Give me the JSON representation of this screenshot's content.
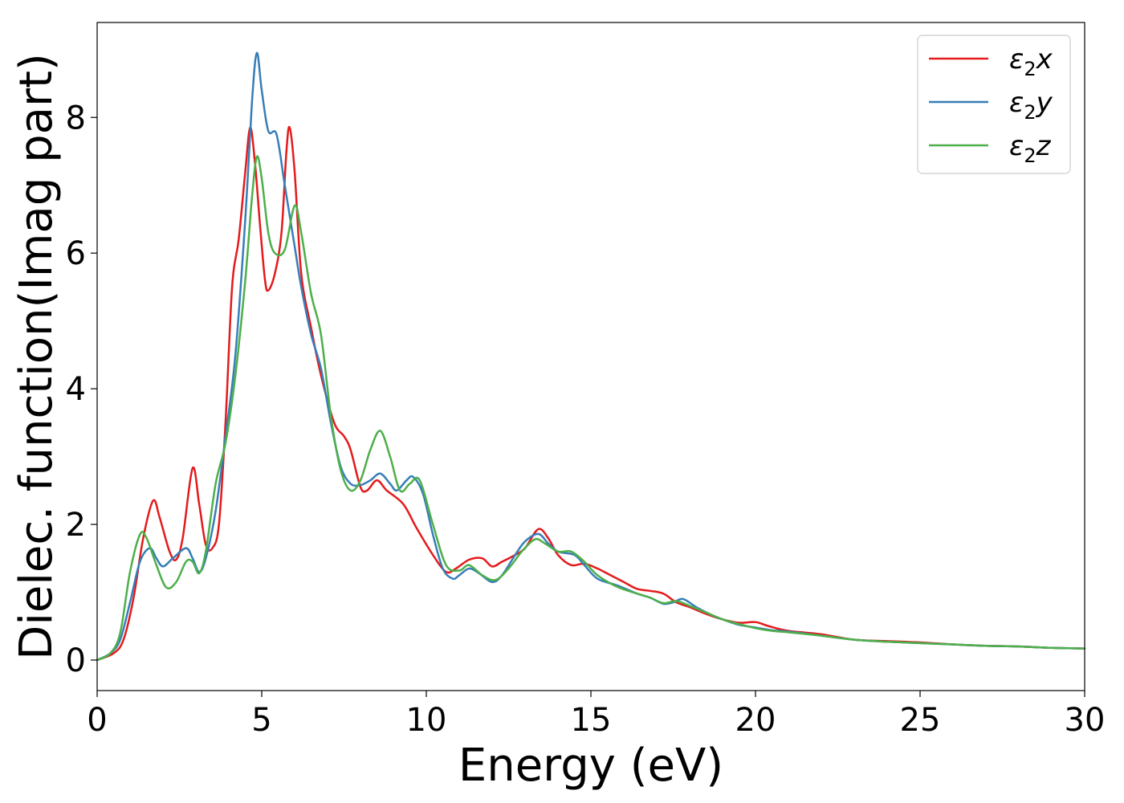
{
  "chart_data": {
    "type": "line",
    "xlabel": "Energy (eV)",
    "ylabel": "Dielec. function(Imag part)",
    "xlim": [
      0,
      30
    ],
    "ylim": [
      -0.45,
      9.4
    ],
    "xticks": [
      0,
      5,
      10,
      15,
      20,
      25,
      30
    ],
    "yticks": [
      0,
      2,
      4,
      6,
      8
    ],
    "grid": false,
    "legend_position": "top-right",
    "series": [
      {
        "name": "ε₂x",
        "legend_base": "ε",
        "legend_sub": "2",
        "legend_var": "x",
        "color": "#e41a1c",
        "points": [
          [
            0,
            0
          ],
          [
            0.5,
            0.1
          ],
          [
            0.8,
            0.3
          ],
          [
            1.1,
            0.9
          ],
          [
            1.4,
            1.8
          ],
          [
            1.7,
            2.35
          ],
          [
            1.9,
            2.1
          ],
          [
            2.2,
            1.6
          ],
          [
            2.4,
            1.48
          ],
          [
            2.6,
            1.8
          ],
          [
            2.9,
            2.83
          ],
          [
            3.1,
            2.3
          ],
          [
            3.3,
            1.7
          ],
          [
            3.5,
            1.65
          ],
          [
            3.7,
            2.0
          ],
          [
            3.9,
            3.5
          ],
          [
            4.1,
            5.5
          ],
          [
            4.3,
            6.2
          ],
          [
            4.5,
            7.2
          ],
          [
            4.65,
            7.85
          ],
          [
            4.8,
            7.3
          ],
          [
            4.95,
            6.4
          ],
          [
            5.1,
            5.6
          ],
          [
            5.2,
            5.45
          ],
          [
            5.4,
            5.7
          ],
          [
            5.6,
            6.3
          ],
          [
            5.75,
            7.5
          ],
          [
            5.85,
            7.85
          ],
          [
            6.0,
            7.2
          ],
          [
            6.2,
            5.7
          ],
          [
            6.5,
            4.9
          ],
          [
            6.8,
            4.2
          ],
          [
            7.2,
            3.5
          ],
          [
            7.5,
            3.3
          ],
          [
            7.7,
            3.1
          ],
          [
            8.0,
            2.55
          ],
          [
            8.2,
            2.5
          ],
          [
            8.5,
            2.65
          ],
          [
            8.8,
            2.5
          ],
          [
            9.3,
            2.3
          ],
          [
            9.7,
            1.95
          ],
          [
            10.2,
            1.55
          ],
          [
            10.6,
            1.3
          ],
          [
            10.9,
            1.35
          ],
          [
            11.3,
            1.48
          ],
          [
            11.7,
            1.5
          ],
          [
            12.0,
            1.38
          ],
          [
            12.3,
            1.45
          ],
          [
            12.7,
            1.55
          ],
          [
            13.0,
            1.65
          ],
          [
            13.4,
            1.93
          ],
          [
            13.7,
            1.8
          ],
          [
            14.0,
            1.55
          ],
          [
            14.4,
            1.4
          ],
          [
            14.8,
            1.42
          ],
          [
            15.2,
            1.35
          ],
          [
            15.6,
            1.25
          ],
          [
            16.0,
            1.15
          ],
          [
            16.4,
            1.05
          ],
          [
            16.8,
            1.02
          ],
          [
            17.2,
            0.98
          ],
          [
            17.6,
            0.85
          ],
          [
            18.0,
            0.78
          ],
          [
            18.5,
            0.68
          ],
          [
            19.0,
            0.6
          ],
          [
            19.5,
            0.55
          ],
          [
            20.0,
            0.56
          ],
          [
            20.4,
            0.5
          ],
          [
            21.0,
            0.43
          ],
          [
            22.0,
            0.38
          ],
          [
            23.0,
            0.3
          ],
          [
            24.0,
            0.28
          ],
          [
            25.0,
            0.26
          ],
          [
            26.0,
            0.23
          ],
          [
            27.0,
            0.21
          ],
          [
            28.0,
            0.2
          ],
          [
            29.0,
            0.18
          ],
          [
            30.0,
            0.17
          ]
        ]
      },
      {
        "name": "ε₂y",
        "legend_base": "ε",
        "legend_sub": "2",
        "legend_var": "y",
        "color": "#377eb8",
        "points": [
          [
            0,
            0
          ],
          [
            0.4,
            0.1
          ],
          [
            0.7,
            0.3
          ],
          [
            1.0,
            0.85
          ],
          [
            1.3,
            1.45
          ],
          [
            1.6,
            1.65
          ],
          [
            1.8,
            1.5
          ],
          [
            2.0,
            1.38
          ],
          [
            2.3,
            1.5
          ],
          [
            2.7,
            1.65
          ],
          [
            2.9,
            1.5
          ],
          [
            3.1,
            1.3
          ],
          [
            3.3,
            1.5
          ],
          [
            3.6,
            2.2
          ],
          [
            3.9,
            3.3
          ],
          [
            4.2,
            4.5
          ],
          [
            4.5,
            6.5
          ],
          [
            4.7,
            8.2
          ],
          [
            4.85,
            8.95
          ],
          [
            5.0,
            8.4
          ],
          [
            5.2,
            7.8
          ],
          [
            5.45,
            7.75
          ],
          [
            5.7,
            7.0
          ],
          [
            6.0,
            6.1
          ],
          [
            6.2,
            5.5
          ],
          [
            6.5,
            4.8
          ],
          [
            6.8,
            4.3
          ],
          [
            7.1,
            3.5
          ],
          [
            7.4,
            2.85
          ],
          [
            7.7,
            2.6
          ],
          [
            8.0,
            2.58
          ],
          [
            8.3,
            2.65
          ],
          [
            8.6,
            2.75
          ],
          [
            8.9,
            2.6
          ],
          [
            9.1,
            2.5
          ],
          [
            9.4,
            2.65
          ],
          [
            9.6,
            2.7
          ],
          [
            9.9,
            2.45
          ],
          [
            10.2,
            1.85
          ],
          [
            10.5,
            1.35
          ],
          [
            10.8,
            1.2
          ],
          [
            11.0,
            1.25
          ],
          [
            11.3,
            1.35
          ],
          [
            11.6,
            1.28
          ],
          [
            12.0,
            1.15
          ],
          [
            12.3,
            1.25
          ],
          [
            12.7,
            1.55
          ],
          [
            13.0,
            1.75
          ],
          [
            13.4,
            1.86
          ],
          [
            13.7,
            1.72
          ],
          [
            14.0,
            1.6
          ],
          [
            14.5,
            1.55
          ],
          [
            14.8,
            1.4
          ],
          [
            15.2,
            1.2
          ],
          [
            15.8,
            1.1
          ],
          [
            16.4,
            0.98
          ],
          [
            16.8,
            0.92
          ],
          [
            17.2,
            0.83
          ],
          [
            17.5,
            0.85
          ],
          [
            17.8,
            0.9
          ],
          [
            18.2,
            0.78
          ],
          [
            18.6,
            0.68
          ],
          [
            19.0,
            0.6
          ],
          [
            19.5,
            0.52
          ],
          [
            20.0,
            0.48
          ],
          [
            20.5,
            0.44
          ],
          [
            21.0,
            0.42
          ],
          [
            22.0,
            0.36
          ],
          [
            23.0,
            0.3
          ],
          [
            24.0,
            0.27
          ],
          [
            25.0,
            0.25
          ],
          [
            26.0,
            0.23
          ],
          [
            27.0,
            0.21
          ],
          [
            28.0,
            0.2
          ],
          [
            29.0,
            0.18
          ],
          [
            30.0,
            0.17
          ]
        ]
      },
      {
        "name": "ε₂z",
        "legend_base": "ε",
        "legend_sub": "2",
        "legend_var": "z",
        "color": "#4daf4a",
        "points": [
          [
            0,
            0
          ],
          [
            0.4,
            0.1
          ],
          [
            0.7,
            0.4
          ],
          [
            1.0,
            1.3
          ],
          [
            1.3,
            1.85
          ],
          [
            1.5,
            1.8
          ],
          [
            1.8,
            1.4
          ],
          [
            2.1,
            1.07
          ],
          [
            2.4,
            1.15
          ],
          [
            2.7,
            1.45
          ],
          [
            2.9,
            1.45
          ],
          [
            3.1,
            1.28
          ],
          [
            3.3,
            1.6
          ],
          [
            3.6,
            2.6
          ],
          [
            3.9,
            3.2
          ],
          [
            4.2,
            4.2
          ],
          [
            4.5,
            5.6
          ],
          [
            4.7,
            6.8
          ],
          [
            4.85,
            7.42
          ],
          [
            5.0,
            7.1
          ],
          [
            5.2,
            6.3
          ],
          [
            5.4,
            6.0
          ],
          [
            5.7,
            6.05
          ],
          [
            6.0,
            6.7
          ],
          [
            6.2,
            6.3
          ],
          [
            6.5,
            5.4
          ],
          [
            6.8,
            4.8
          ],
          [
            7.1,
            3.6
          ],
          [
            7.4,
            2.8
          ],
          [
            7.7,
            2.5
          ],
          [
            8.0,
            2.65
          ],
          [
            8.3,
            3.1
          ],
          [
            8.6,
            3.38
          ],
          [
            8.9,
            3.0
          ],
          [
            9.2,
            2.5
          ],
          [
            9.5,
            2.6
          ],
          [
            9.8,
            2.65
          ],
          [
            10.2,
            2.0
          ],
          [
            10.6,
            1.4
          ],
          [
            11.0,
            1.32
          ],
          [
            11.3,
            1.4
          ],
          [
            11.7,
            1.25
          ],
          [
            12.1,
            1.18
          ],
          [
            12.5,
            1.35
          ],
          [
            12.9,
            1.6
          ],
          [
            13.3,
            1.78
          ],
          [
            13.6,
            1.72
          ],
          [
            14.0,
            1.6
          ],
          [
            14.4,
            1.6
          ],
          [
            14.8,
            1.45
          ],
          [
            15.2,
            1.25
          ],
          [
            15.8,
            1.08
          ],
          [
            16.4,
            0.98
          ],
          [
            16.8,
            0.92
          ],
          [
            17.2,
            0.84
          ],
          [
            17.6,
            0.87
          ],
          [
            18.0,
            0.8
          ],
          [
            18.5,
            0.7
          ],
          [
            19.0,
            0.6
          ],
          [
            19.5,
            0.53
          ],
          [
            20.0,
            0.47
          ],
          [
            20.5,
            0.43
          ],
          [
            21.0,
            0.41
          ],
          [
            22.0,
            0.36
          ],
          [
            23.0,
            0.3
          ],
          [
            24.0,
            0.27
          ],
          [
            25.0,
            0.25
          ],
          [
            26.0,
            0.23
          ],
          [
            27.0,
            0.21
          ],
          [
            28.0,
            0.2
          ],
          [
            29.0,
            0.18
          ],
          [
            30.0,
            0.17
          ]
        ]
      }
    ]
  }
}
